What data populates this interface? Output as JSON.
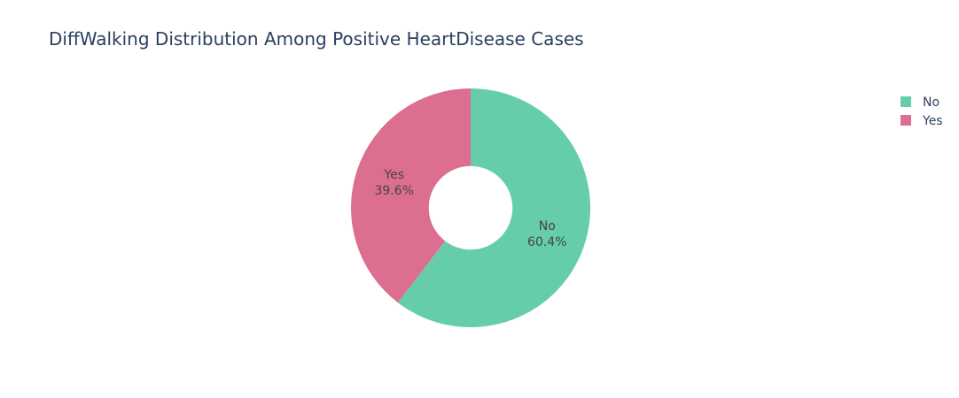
{
  "chart_data": {
    "type": "pie",
    "title": "DiffWalking Distribution Among Positive HeartDisease Cases",
    "hole": 0.35,
    "legend_position": "top-right",
    "categories": [
      "No",
      "Yes"
    ],
    "values": [
      60.4,
      39.6
    ],
    "value_labels": [
      "60.4%",
      "39.6%"
    ],
    "colors": [
      "#66cdaa",
      "#dc6e8f"
    ]
  }
}
